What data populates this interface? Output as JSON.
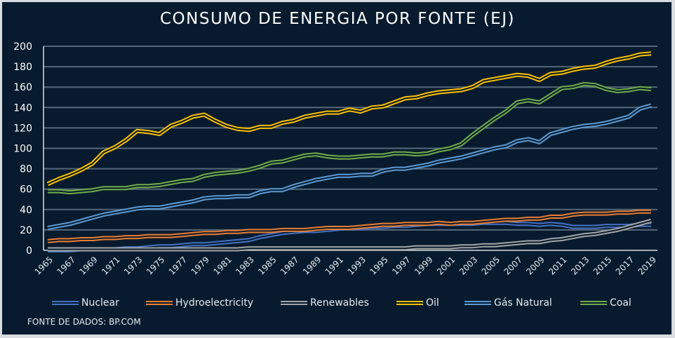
{
  "chart_data": {
    "type": "line",
    "title": "CONSUMO DE ENERGIA POR FONTE (EJ)",
    "xlabel": "",
    "ylabel": "",
    "ylim": [
      0,
      200
    ],
    "yticks": [
      0,
      20,
      40,
      60,
      80,
      100,
      120,
      140,
      160,
      180,
      200
    ],
    "grid": true,
    "legend_position": "bottom",
    "x": [
      1965,
      1966,
      1967,
      1968,
      1969,
      1970,
      1971,
      1972,
      1973,
      1974,
      1975,
      1976,
      1977,
      1978,
      1979,
      1980,
      1981,
      1982,
      1983,
      1984,
      1985,
      1986,
      1987,
      1988,
      1989,
      1990,
      1991,
      1992,
      1993,
      1994,
      1995,
      1996,
      1997,
      1998,
      1999,
      2000,
      2001,
      2002,
      2003,
      2004,
      2005,
      2006,
      2007,
      2008,
      2009,
      2010,
      2011,
      2012,
      2013,
      2014,
      2015,
      2016,
      2017,
      2018,
      2019
    ],
    "xtick_labels": [
      "1965",
      "1967",
      "1969",
      "1971",
      "1973",
      "1975",
      "1977",
      "1979",
      "1981",
      "1983",
      "1985",
      "1987",
      "1989",
      "1991",
      "1993",
      "1995",
      "1997",
      "1999",
      "2001",
      "2003",
      "2005",
      "2007",
      "2009",
      "2011",
      "2013",
      "2015",
      "2017",
      "2019"
    ],
    "series": [
      {
        "name": "Nuclear",
        "color": "#4472c4",
        "values": [
          0,
          0,
          0,
          1,
          1,
          1,
          1,
          2,
          2,
          3,
          4,
          4,
          5,
          6,
          6,
          7,
          8,
          9,
          10,
          13,
          15,
          17,
          18,
          19,
          19,
          20,
          21,
          22,
          22,
          23,
          23,
          24,
          24,
          25,
          26,
          26,
          26,
          26,
          26,
          27,
          27,
          27,
          26,
          26,
          25,
          26,
          25,
          23,
          23,
          23,
          24,
          24,
          24,
          25,
          25
        ]
      },
      {
        "name": "Hydroelectricity",
        "color": "#ed7d31",
        "values": [
          9,
          10,
          10,
          11,
          11,
          12,
          12,
          13,
          13,
          14,
          14,
          14,
          15,
          16,
          17,
          17,
          18,
          18,
          19,
          19,
          19,
          20,
          20,
          20,
          21,
          22,
          22,
          22,
          23,
          24,
          25,
          25,
          26,
          26,
          26,
          27,
          26,
          27,
          27,
          28,
          29,
          30,
          30,
          31,
          31,
          33,
          33,
          35,
          36,
          36,
          36,
          37,
          37,
          38,
          38
        ]
      },
      {
        "name": "Renewables",
        "color": "#a5a5a5",
        "values": [
          1,
          1,
          1,
          1,
          1,
          1,
          1,
          1,
          1,
          1,
          1,
          1,
          1,
          1,
          1,
          1,
          1,
          1,
          2,
          2,
          2,
          2,
          2,
          2,
          2,
          2,
          2,
          2,
          2,
          2,
          2,
          2,
          2,
          3,
          3,
          3,
          3,
          4,
          4,
          5,
          5,
          6,
          7,
          8,
          8,
          10,
          11,
          13,
          15,
          16,
          18,
          20,
          23,
          26,
          29
        ]
      },
      {
        "name": "Oil",
        "color": "#ffc000",
        "values": [
          65,
          70,
          74,
          79,
          85,
          96,
          101,
          108,
          117,
          116,
          114,
          122,
          126,
          131,
          133,
          127,
          122,
          119,
          118,
          121,
          121,
          125,
          127,
          131,
          133,
          135,
          135,
          138,
          136,
          140,
          141,
          145,
          149,
          150,
          153,
          155,
          156,
          157,
          160,
          166,
          168,
          170,
          172,
          171,
          167,
          173,
          174,
          177,
          179,
          180,
          184,
          187,
          189,
          192,
          193
        ]
      },
      {
        "name": "Gás Natural",
        "color": "#5b9bd5",
        "values": [
          22,
          24,
          26,
          29,
          32,
          35,
          37,
          39,
          41,
          42,
          42,
          44,
          46,
          48,
          51,
          52,
          52,
          53,
          53,
          57,
          59,
          59,
          63,
          66,
          69,
          71,
          73,
          73,
          74,
          74,
          78,
          80,
          80,
          82,
          84,
          87,
          89,
          91,
          94,
          97,
          100,
          102,
          107,
          109,
          106,
          114,
          117,
          120,
          122,
          123,
          125,
          128,
          131,
          139,
          142
        ]
      },
      {
        "name": "Coal",
        "color": "#70ad47",
        "values": [
          58,
          58,
          57,
          58,
          59,
          61,
          61,
          61,
          63,
          63,
          64,
          66,
          68,
          69,
          73,
          75,
          76,
          77,
          79,
          82,
          86,
          87,
          90,
          93,
          94,
          92,
          91,
          91,
          92,
          93,
          93,
          95,
          95,
          94,
          95,
          98,
          100,
          104,
          113,
          121,
          129,
          136,
          145,
          147,
          145,
          152,
          159,
          160,
          163,
          162,
          158,
          156,
          157,
          159,
          158
        ]
      }
    ]
  },
  "footer": {
    "source": "FONTE DE DADOS: BP.COM"
  }
}
